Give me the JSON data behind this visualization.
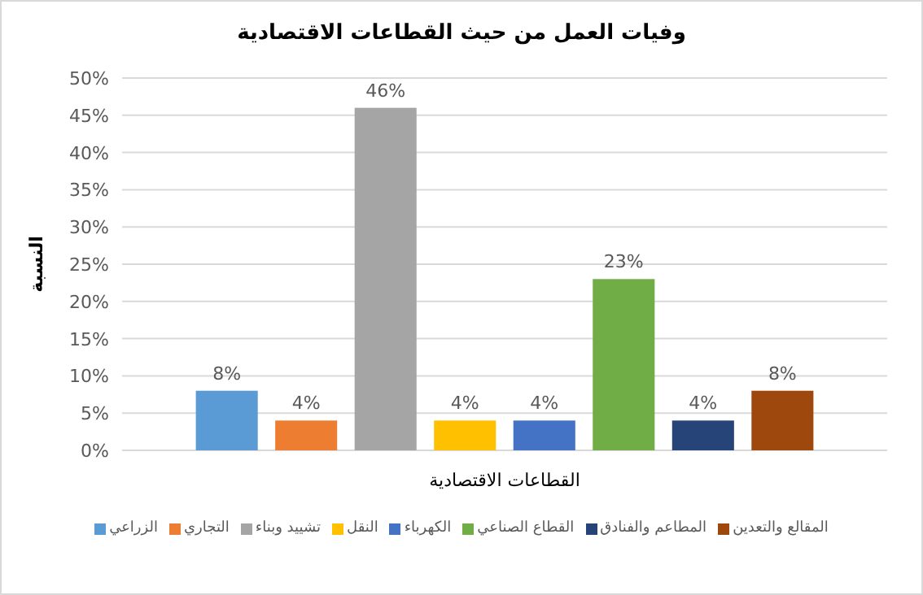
{
  "chart_data": {
    "type": "bar",
    "title": "وفيات العمل من حيث القطاعات الاقتصادية",
    "xlabel": "القطاعات الاقتصادية",
    "ylabel": "النسبة",
    "categories": [
      null
    ],
    "series": [
      {
        "name": "الزراعي",
        "color": "#5b9bd5",
        "values": [
          8
        ],
        "value_labels": [
          "8%"
        ]
      },
      {
        "name": "التجاري",
        "color": "#ed7d31",
        "values": [
          4
        ],
        "value_labels": [
          "4%"
        ]
      },
      {
        "name": "تشييد وبناء",
        "color": "#a5a5a5",
        "values": [
          46
        ],
        "value_labels": [
          "46%"
        ]
      },
      {
        "name": "النقل",
        "color": "#ffc000",
        "values": [
          4
        ],
        "value_labels": [
          "4%"
        ]
      },
      {
        "name": "الكهرباء",
        "color": "#4472c4",
        "values": [
          4
        ],
        "value_labels": [
          "4%"
        ]
      },
      {
        "name": "القطاع الصناعي",
        "color": "#70ad47",
        "values": [
          23
        ],
        "value_labels": [
          "23%"
        ]
      },
      {
        "name": "المطاعم والفنادق",
        "color": "#264478",
        "values": [
          4
        ],
        "value_labels": [
          "4%"
        ]
      },
      {
        "name": "المقالع والتعدين",
        "color": "#9e480e",
        "values": [
          8
        ],
        "value_labels": [
          "8%"
        ]
      }
    ],
    "ylim": [
      0,
      50
    ],
    "yticks": [
      {
        "value": 0,
        "label": "0%"
      },
      {
        "value": 5,
        "label": "5%"
      },
      {
        "value": 10,
        "label": "10%"
      },
      {
        "value": 15,
        "label": "15%"
      },
      {
        "value": 20,
        "label": "20%"
      },
      {
        "value": 25,
        "label": "25%"
      },
      {
        "value": 30,
        "label": "30%"
      },
      {
        "value": 35,
        "label": "35%"
      },
      {
        "value": 40,
        "label": "40%"
      },
      {
        "value": 45,
        "label": "45%"
      },
      {
        "value": 50,
        "label": "50%"
      }
    ],
    "grid": "y",
    "legend": "bottom"
  }
}
